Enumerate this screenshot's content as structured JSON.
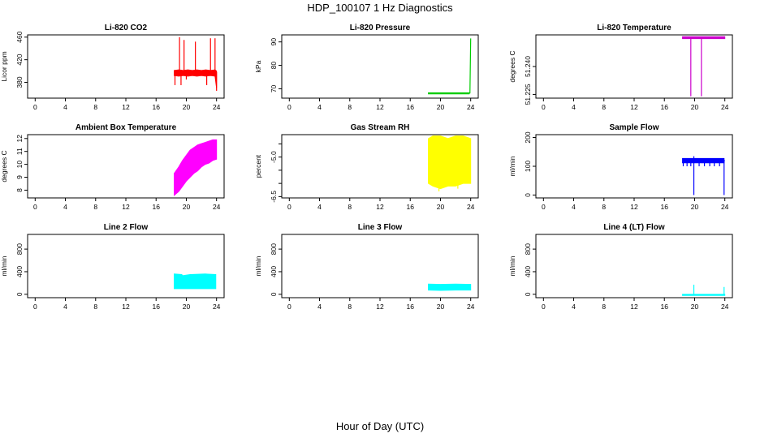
{
  "figure": {
    "title": "HDP_100107  1 Hz Diagnostics",
    "xlabel": "Hour of Day (UTC)"
  },
  "chart_data": [
    {
      "type": "line",
      "title": "Li-820 CO2",
      "ylabel": "Licor ppm",
      "xlim": [
        -1,
        25
      ],
      "ylim": [
        352,
        464
      ],
      "xticks": [
        0,
        4,
        8,
        12,
        16,
        20,
        24
      ],
      "yticks": [
        380,
        420,
        460
      ],
      "ytick_labels": [
        "380",
        "420",
        "460"
      ],
      "series": [
        {
          "color": "#ff0000",
          "points": [
            [
              18.4,
              397
            ],
            [
              18.6,
              396
            ],
            [
              18.8,
              398
            ],
            [
              19.0,
              397
            ],
            [
              19.2,
              396
            ],
            [
              19.4,
              398
            ],
            [
              19.6,
              397
            ],
            [
              19.8,
              398
            ],
            [
              20.0,
              397
            ],
            [
              20.2,
              396
            ],
            [
              20.4,
              398
            ],
            [
              20.6,
              397
            ],
            [
              20.8,
              396
            ],
            [
              21.0,
              398
            ],
            [
              21.2,
              397
            ],
            [
              21.4,
              398
            ],
            [
              21.6,
              396
            ],
            [
              21.8,
              397
            ],
            [
              22.0,
              398
            ],
            [
              22.2,
              397
            ],
            [
              22.4,
              396
            ],
            [
              22.6,
              398
            ],
            [
              22.8,
              397
            ],
            [
              23.0,
              398
            ],
            [
              23.2,
              396
            ],
            [
              23.4,
              397
            ],
            [
              23.6,
              398
            ],
            [
              23.8,
              397
            ],
            [
              24.0,
              396
            ]
          ],
          "band": [
            [
              18.4,
              392,
              401
            ],
            [
              19.0,
              391,
              402
            ],
            [
              19.6,
              392,
              401
            ],
            [
              20.2,
              391,
              402
            ],
            [
              20.8,
              392,
              401
            ],
            [
              21.4,
              391,
              402
            ],
            [
              22.0,
              392,
              401
            ],
            [
              22.6,
              391,
              402
            ],
            [
              23.2,
              392,
              401
            ],
            [
              23.8,
              391,
              402
            ],
            [
              24.0,
              370,
              400
            ]
          ],
          "spikes": [
            [
              18.5,
              375,
              398
            ],
            [
              19.1,
              397,
              460
            ],
            [
              19.3,
              375,
              398
            ],
            [
              19.7,
              397,
              455
            ],
            [
              20.0,
              385,
              398
            ],
            [
              21.2,
              397,
              452
            ],
            [
              22.7,
              375,
              398
            ],
            [
              23.2,
              397,
              458
            ],
            [
              23.8,
              397,
              458
            ],
            [
              24.0,
              365,
              398
            ]
          ]
        }
      ]
    },
    {
      "type": "line",
      "title": "Li-820 Pressure",
      "ylabel": "kPa",
      "xlim": [
        -1,
        25
      ],
      "ylim": [
        66,
        93
      ],
      "xticks": [
        0,
        4,
        8,
        12,
        16,
        20,
        24
      ],
      "yticks": [
        70,
        80,
        90
      ],
      "ytick_labels": [
        "70",
        "80",
        "90"
      ],
      "series": [
        {
          "color": "#00cc00",
          "points": [
            [
              18.4,
              68.0
            ],
            [
              19.0,
              68.0
            ],
            [
              20.0,
              68.1
            ],
            [
              21.0,
              68.0
            ],
            [
              22.0,
              68.1
            ],
            [
              23.0,
              68.0
            ],
            [
              23.8,
              68.1
            ],
            [
              23.9,
              68.2
            ],
            [
              24.0,
              91.5
            ]
          ],
          "band": [
            [
              18.4,
              67.8,
              68.3
            ],
            [
              23.8,
              67.8,
              68.3
            ]
          ],
          "spikes": []
        }
      ]
    },
    {
      "type": "line",
      "title": "Li-820 Temperature",
      "ylabel": "degrees C",
      "xlim": [
        -1,
        25
      ],
      "ylim": [
        51.223,
        51.257
      ],
      "xticks": [
        0,
        4,
        8,
        12,
        16,
        20,
        24
      ],
      "yticks": [
        51.225,
        51.24
      ],
      "ytick_labels": [
        "51.225",
        "51.240"
      ],
      "series": [
        {
          "color": "#cc00cc",
          "points": [
            [
              18.4,
              51.2555
            ],
            [
              19.0,
              51.2555
            ],
            [
              20.0,
              51.2555
            ],
            [
              21.0,
              51.2555
            ],
            [
              22.0,
              51.2555
            ],
            [
              23.0,
              51.2555
            ],
            [
              24.0,
              51.2555
            ]
          ],
          "band": [
            [
              18.4,
              51.255,
              51.256
            ],
            [
              24.0,
              51.255,
              51.256
            ]
          ],
          "spikes": [
            [
              19.5,
              51.224,
              51.2555
            ],
            [
              20.9,
              51.224,
              51.2555
            ]
          ]
        }
      ]
    },
    {
      "type": "line",
      "title": "Ambient Box Temperature",
      "ylabel": "degrees C",
      "xlim": [
        -1,
        25
      ],
      "ylim": [
        7.4,
        12.3
      ],
      "xticks": [
        0,
        4,
        8,
        12,
        16,
        20,
        24
      ],
      "yticks": [
        8,
        9,
        10,
        11,
        12
      ],
      "ytick_labels": [
        "8",
        "9",
        "10",
        "11",
        "12"
      ],
      "series": [
        {
          "color": "#ff00ff",
          "points": [
            [
              18.4,
              8.4
            ],
            [
              19.0,
              8.9
            ],
            [
              19.5,
              9.3
            ],
            [
              20.0,
              9.6
            ],
            [
              20.5,
              9.9
            ],
            [
              21.0,
              10.1
            ],
            [
              21.5,
              10.3
            ],
            [
              22.0,
              10.5
            ],
            [
              22.5,
              10.7
            ],
            [
              23.0,
              10.8
            ],
            [
              23.5,
              10.9
            ],
            [
              24.0,
              10.9
            ]
          ],
          "band": [
            [
              18.4,
              7.6,
              9.3
            ],
            [
              19.0,
              7.9,
              9.8
            ],
            [
              19.5,
              8.3,
              10.3
            ],
            [
              20.0,
              8.7,
              10.7
            ],
            [
              20.5,
              9.0,
              11.1
            ],
            [
              21.0,
              9.3,
              11.3
            ],
            [
              21.5,
              9.5,
              11.5
            ],
            [
              22.0,
              9.8,
              11.6
            ],
            [
              22.5,
              10.0,
              11.7
            ],
            [
              23.0,
              10.1,
              11.8
            ],
            [
              23.5,
              10.3,
              11.9
            ],
            [
              24.0,
              10.4,
              11.9
            ]
          ],
          "spikes": []
        }
      ]
    },
    {
      "type": "line",
      "title": "Gas Stream RH",
      "ylabel": "percent",
      "xlim": [
        -1,
        25
      ],
      "ylim": [
        -6.55,
        -4.15
      ],
      "xticks": [
        0,
        4,
        8,
        12,
        16,
        20,
        24
      ],
      "yticks": [
        -6.5,
        -5.0
      ],
      "ytick_labels": [
        "-6.5",
        "-5.0"
      ],
      "extra_yticks": [
        -6.0,
        -5.5,
        -4.5
      ],
      "series": [
        {
          "color": "#ffff00",
          "points": [
            [
              18.4,
              -5.3
            ],
            [
              19.0,
              -5.3
            ],
            [
              20.0,
              -5.3
            ],
            [
              21.0,
              -5.3
            ],
            [
              22.0,
              -5.3
            ],
            [
              23.0,
              -5.3
            ],
            [
              24.0,
              -5.3
            ]
          ],
          "band": [
            [
              18.4,
              -6.0,
              -4.3
            ],
            [
              19.0,
              -6.1,
              -4.2
            ],
            [
              20.0,
              -6.2,
              -4.2
            ],
            [
              21.0,
              -6.1,
              -4.3
            ],
            [
              22.0,
              -6.1,
              -4.2
            ],
            [
              23.0,
              -6.0,
              -4.2
            ],
            [
              24.0,
              -6.0,
              -4.3
            ]
          ],
          "spikes": [
            [
              19.8,
              -6.3,
              -5.2
            ],
            [
              22.3,
              -6.2,
              -5.2
            ]
          ]
        }
      ]
    },
    {
      "type": "line",
      "title": "Sample Flow",
      "ylabel": "ml/min",
      "xlim": [
        -1,
        25
      ],
      "ylim": [
        -10,
        210
      ],
      "xticks": [
        0,
        4,
        8,
        12,
        16,
        20,
        24
      ],
      "yticks": [
        0,
        100,
        200
      ],
      "ytick_labels": [
        "0",
        "100",
        "200"
      ],
      "series": [
        {
          "color": "#0000ff",
          "points": [
            [
              18.4,
              120
            ],
            [
              19.0,
              120
            ],
            [
              19.9,
              120
            ],
            [
              20.0,
              120
            ],
            [
              21.0,
              120
            ],
            [
              22.0,
              120
            ],
            [
              23.0,
              120
            ],
            [
              23.8,
              120
            ],
            [
              24.0,
              120
            ]
          ],
          "band": [
            [
              18.4,
              112,
              127
            ],
            [
              23.9,
              112,
              127
            ]
          ],
          "spikes": [
            [
              18.5,
              100,
              120
            ],
            [
              19.0,
              100,
              120
            ],
            [
              19.5,
              100,
              120
            ],
            [
              19.9,
              0,
              135
            ],
            [
              20.6,
              100,
              120
            ],
            [
              21.3,
              100,
              120
            ],
            [
              22.0,
              100,
              120
            ],
            [
              22.6,
              100,
              120
            ],
            [
              23.3,
              100,
              120
            ],
            [
              23.9,
              0,
              120
            ]
          ]
        }
      ]
    },
    {
      "type": "line",
      "title": "Line 2 Flow",
      "ylabel": "ml/min",
      "xlim": [
        -1,
        25
      ],
      "ylim": [
        -60,
        1060
      ],
      "xticks": [
        0,
        4,
        8,
        12,
        16,
        20,
        24
      ],
      "yticks": [
        0,
        400,
        800
      ],
      "ytick_labels": [
        "0",
        "400",
        "800"
      ],
      "series": [
        {
          "color": "#00ffff",
          "points": [
            [
              18.4,
              230
            ],
            [
              19.5,
              225
            ],
            [
              20.5,
              230
            ],
            [
              21.5,
              228
            ],
            [
              22.5,
              230
            ],
            [
              23.9,
              230
            ]
          ],
          "band": [
            [
              18.4,
              100,
              360
            ],
            [
              19.4,
              100,
              350
            ],
            [
              19.5,
              100,
              330
            ],
            [
              20.5,
              100,
              350
            ],
            [
              21.5,
              100,
              355
            ],
            [
              22.5,
              100,
              360
            ],
            [
              23.9,
              100,
              350
            ]
          ],
          "spikes": []
        }
      ]
    },
    {
      "type": "line",
      "title": "Line 3 Flow",
      "ylabel": "ml/min",
      "xlim": [
        -1,
        25
      ],
      "ylim": [
        -60,
        1060
      ],
      "xticks": [
        0,
        4,
        8,
        12,
        16,
        20,
        24
      ],
      "yticks": [
        0,
        400,
        800
      ],
      "ytick_labels": [
        "0",
        "400",
        "800"
      ],
      "series": [
        {
          "color": "#00ffff",
          "points": [
            [
              18.4,
              130
            ],
            [
              20.0,
              130
            ],
            [
              22.0,
              130
            ],
            [
              24.0,
              130
            ]
          ],
          "band": [
            [
              18.4,
              75,
              180
            ],
            [
              20.0,
              70,
              175
            ],
            [
              22.0,
              75,
              180
            ],
            [
              24.0,
              75,
              175
            ]
          ],
          "spikes": []
        }
      ]
    },
    {
      "type": "line",
      "title": "Line 4 (LT) Flow",
      "ylabel": "ml/min",
      "xlim": [
        -1,
        25
      ],
      "ylim": [
        -60,
        1060
      ],
      "xticks": [
        0,
        4,
        8,
        12,
        16,
        20,
        24
      ],
      "yticks": [
        0,
        400,
        800
      ],
      "ytick_labels": [
        "0",
        "400",
        "800"
      ],
      "series": [
        {
          "color": "#00ffff",
          "points": [
            [
              18.4,
              -10
            ],
            [
              19.0,
              -10
            ],
            [
              19.9,
              -10
            ],
            [
              20.0,
              -10
            ],
            [
              21.0,
              -10
            ],
            [
              22.0,
              -10
            ],
            [
              23.0,
              -10
            ],
            [
              24.0,
              -10
            ]
          ],
          "band": [
            [
              18.4,
              -20,
              0
            ],
            [
              24.0,
              -20,
              0
            ]
          ],
          "spikes": [
            [
              19.9,
              -10,
              170
            ],
            [
              23.9,
              -10,
              130
            ]
          ]
        }
      ]
    }
  ]
}
